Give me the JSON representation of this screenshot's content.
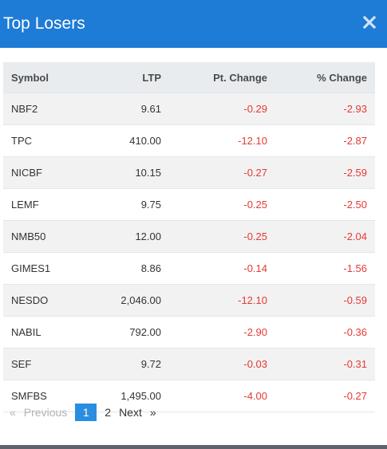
{
  "modal": {
    "title": "Top Losers",
    "close_icon": "close-icon",
    "header_color": "#1e7bd6"
  },
  "table": {
    "headers": {
      "symbol": "Symbol",
      "ltp": "LTP",
      "pt_change": "Pt. Change",
      "pct_change": "% Change"
    },
    "rows": [
      {
        "symbol": "NBF2",
        "ltp": "9.61",
        "pt_change": "-0.29",
        "pct_change": "-2.93"
      },
      {
        "symbol": "TPC",
        "ltp": "410.00",
        "pt_change": "-12.10",
        "pct_change": "-2.87"
      },
      {
        "symbol": "NICBF",
        "ltp": "10.15",
        "pt_change": "-0.27",
        "pct_change": "-2.59"
      },
      {
        "symbol": "LEMF",
        "ltp": "9.75",
        "pt_change": "-0.25",
        "pct_change": "-2.50"
      },
      {
        "symbol": "NMB50",
        "ltp": "12.00",
        "pt_change": "-0.25",
        "pct_change": "-2.04"
      },
      {
        "symbol": "GIMES1",
        "ltp": "8.86",
        "pt_change": "-0.14",
        "pct_change": "-1.56"
      },
      {
        "symbol": "NESDO",
        "ltp": "2,046.00",
        "pt_change": "-12.10",
        "pct_change": "-0.59"
      },
      {
        "symbol": "NABIL",
        "ltp": "792.00",
        "pt_change": "-2.90",
        "pct_change": "-0.36"
      },
      {
        "symbol": "SEF",
        "ltp": "9.72",
        "pt_change": "-0.03",
        "pct_change": "-0.31"
      },
      {
        "symbol": "SMFBS",
        "ltp": "1,495.00",
        "pt_change": "-4.00",
        "pct_change": "-0.27"
      }
    ],
    "negative_color": "#e53935"
  },
  "pagination": {
    "first_symbol": "«",
    "previous_label": "Previous",
    "pages": [
      "1",
      "2"
    ],
    "current_page": "1",
    "next_label": "Next",
    "last_symbol": "»",
    "active_color": "#2a8ee0"
  }
}
